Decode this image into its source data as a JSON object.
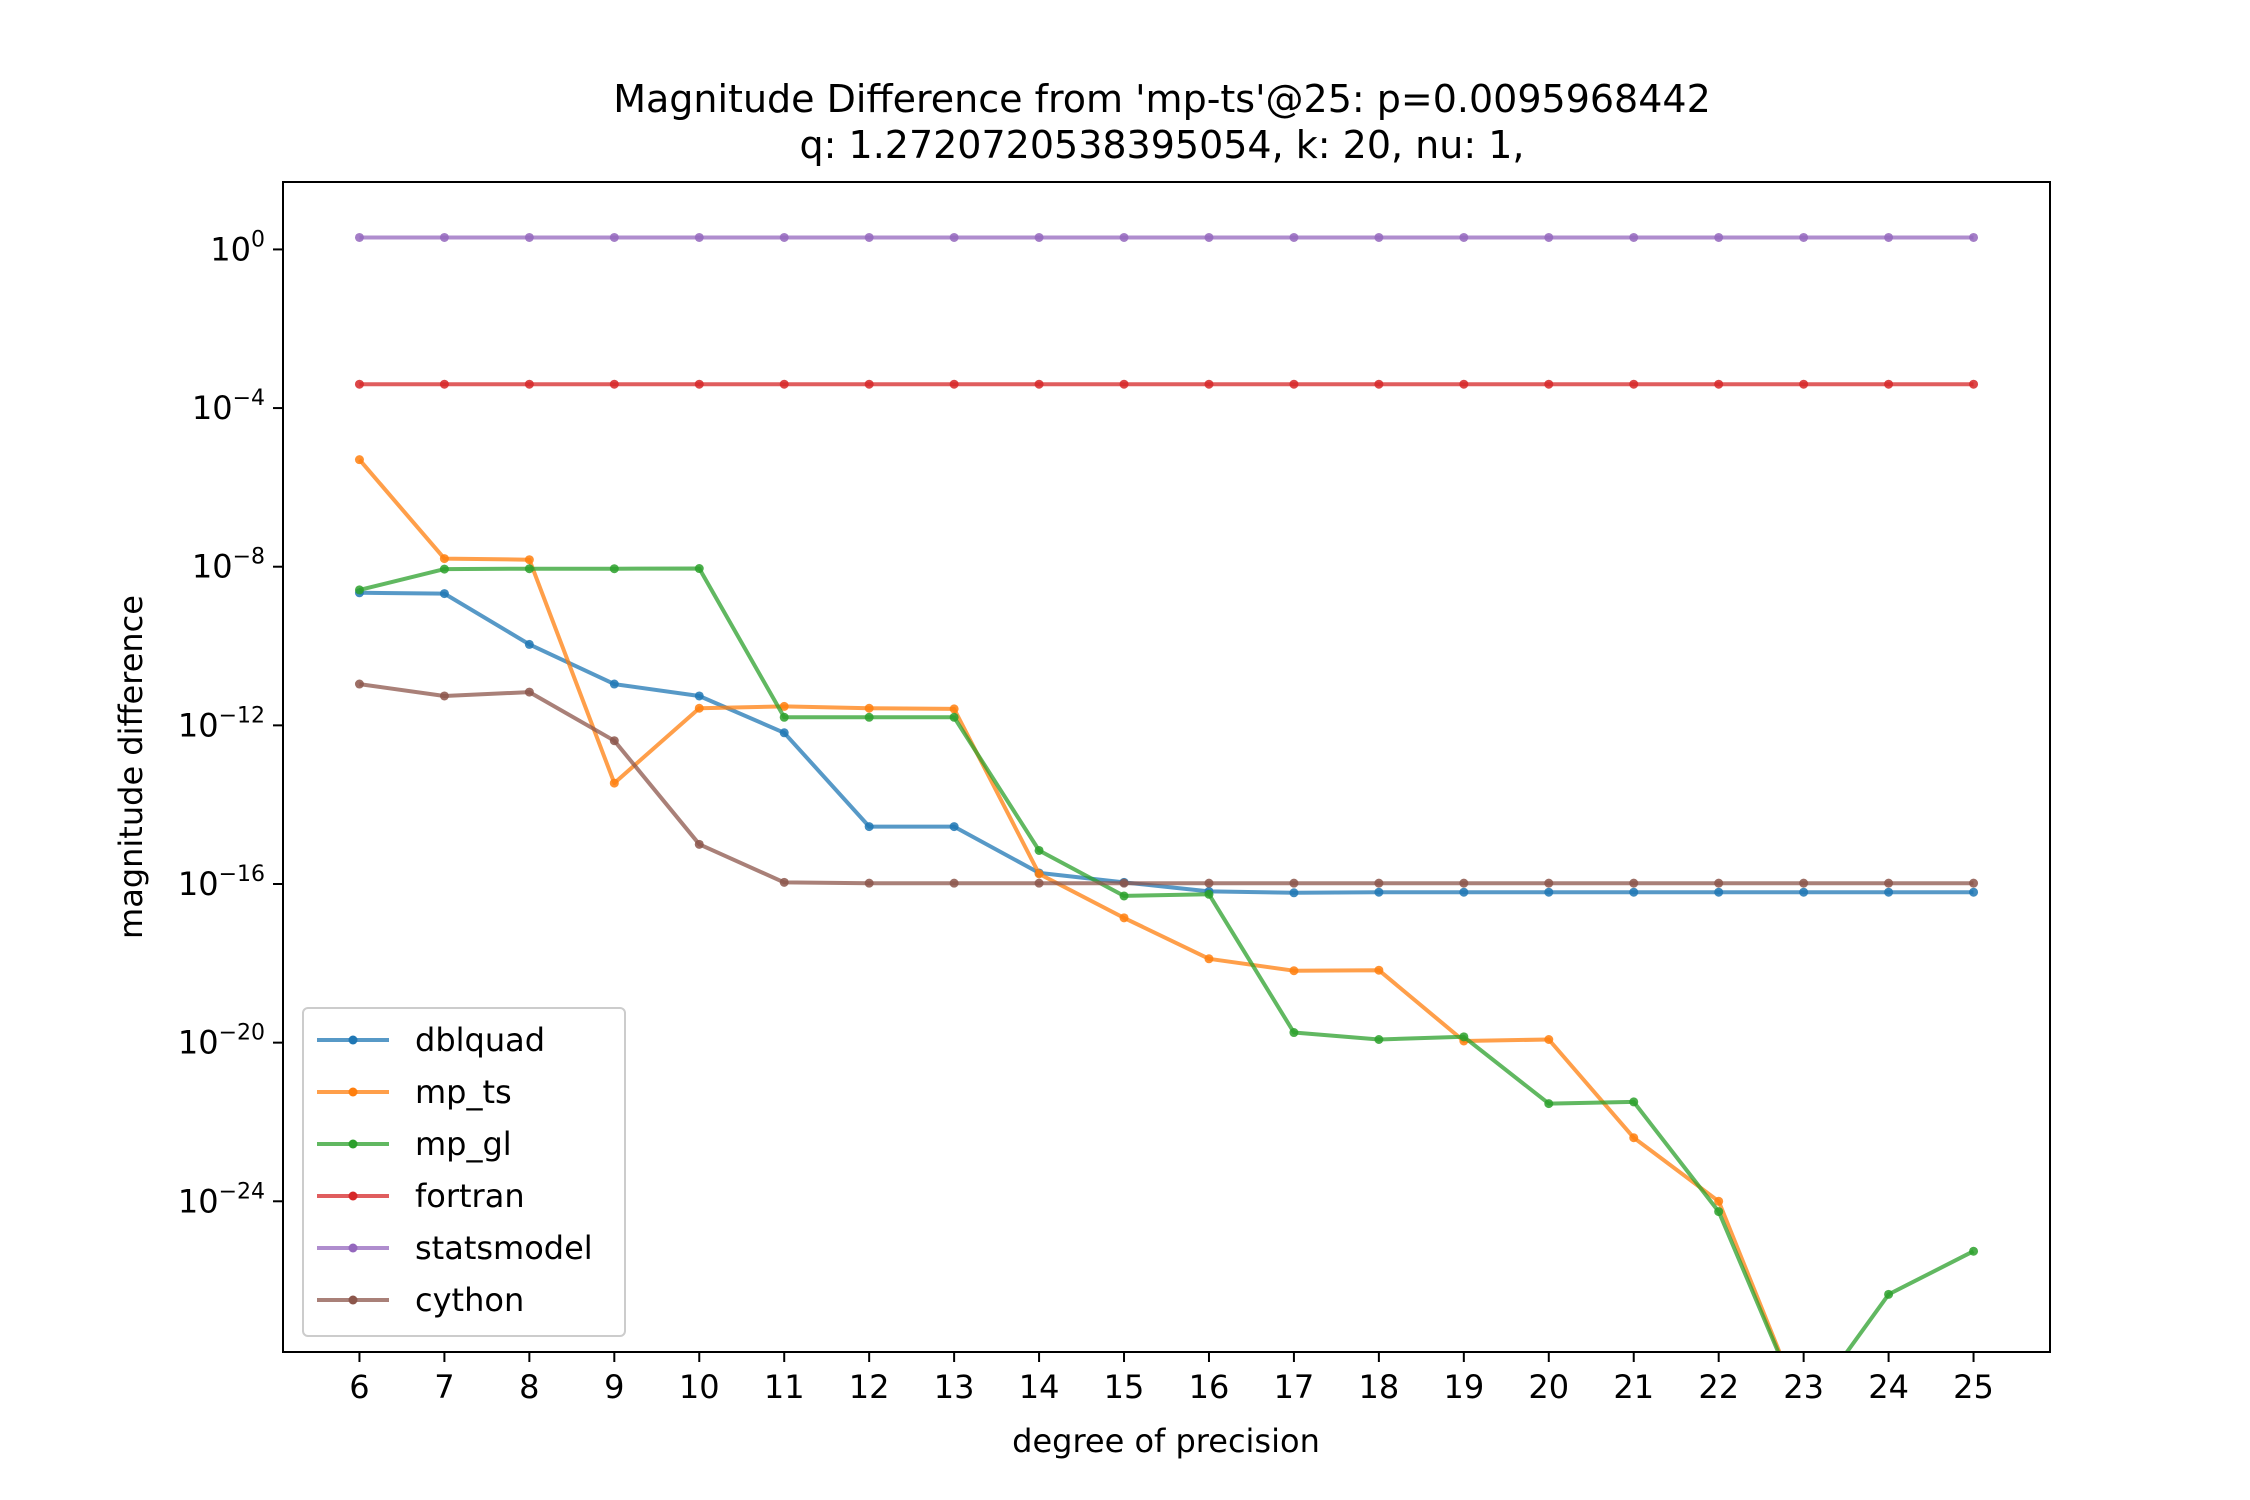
{
  "chart_data": {
    "type": "line",
    "title": "Magnitude Difference from 'mp-ts'@25: p=0.0095968442",
    "subtitle": "q: 1.2720720538395054, k: 20, nu: 1,",
    "xlabel": "degree of precision",
    "ylabel": "magnitude difference",
    "y_scale": "log",
    "xlim": [
      5.1,
      25.9
    ],
    "ylim_log10": [
      -27.8,
      1.7
    ],
    "x": [
      6,
      7,
      8,
      9,
      10,
      11,
      12,
      13,
      14,
      15,
      16,
      17,
      18,
      19,
      20,
      21,
      22,
      23,
      24,
      25
    ],
    "x_tick_labels": [
      "6",
      "7",
      "8",
      "9",
      "10",
      "11",
      "12",
      "13",
      "14",
      "15",
      "16",
      "17",
      "18",
      "19",
      "20",
      "21",
      "22",
      "23",
      "24",
      "25"
    ],
    "y_ticks_log10": [
      0,
      -4,
      -8,
      -12,
      -16,
      -20,
      -24
    ],
    "grid": false,
    "legend_position": "lower-left",
    "series": [
      {
        "name": "dblquad",
        "color": "#1f77b4",
        "points": [
          [
            6,
            2.2e-09
          ],
          [
            7,
            2.1e-09
          ],
          [
            8,
            1.1e-10
          ],
          [
            9,
            1.1e-11
          ],
          [
            10,
            5.5e-12
          ],
          [
            11,
            6.5e-13
          ],
          [
            12,
            2.8e-15
          ],
          [
            13,
            2.8e-15
          ],
          [
            14,
            1.9e-16
          ],
          [
            15,
            1.1e-16
          ],
          [
            16,
            6.5e-17
          ],
          [
            17,
            6e-17
          ],
          [
            18,
            6.2e-17
          ],
          [
            19,
            6.2e-17
          ],
          [
            20,
            6.2e-17
          ],
          [
            21,
            6.2e-17
          ],
          [
            22,
            6.2e-17
          ],
          [
            23,
            6.2e-17
          ],
          [
            24,
            6.2e-17
          ],
          [
            25,
            6.2e-17
          ]
        ]
      },
      {
        "name": "mp_ts",
        "color": "#ff7f0e",
        "points": [
          [
            6,
            5e-06
          ],
          [
            7,
            1.6e-08
          ],
          [
            8,
            1.5e-08
          ],
          [
            9,
            3.5e-14
          ],
          [
            10,
            2.7e-12
          ],
          [
            11,
            3e-12
          ],
          [
            12,
            2.7e-12
          ],
          [
            13,
            2.6e-12
          ],
          [
            14,
            1.8e-16
          ],
          [
            15,
            1.4e-17
          ],
          [
            16,
            1.3e-18
          ],
          [
            17,
            6.5e-19
          ],
          [
            18,
            6.7e-19
          ],
          [
            19,
            1.1e-20
          ],
          [
            20,
            1.2e-20
          ],
          [
            21,
            4e-23
          ],
          [
            22,
            1e-24
          ],
          [
            23,
            null
          ],
          [
            24,
            null
          ],
          [
            25,
            null
          ]
        ]
      },
      {
        "name": "mp_gl",
        "color": "#2ca02c",
        "points": [
          [
            6,
            2.6e-09
          ],
          [
            7,
            8.7e-09
          ],
          [
            8,
            8.9e-09
          ],
          [
            9,
            8.9e-09
          ],
          [
            10,
            9e-09
          ],
          [
            11,
            1.6e-12
          ],
          [
            12,
            1.6e-12
          ],
          [
            13,
            1.6e-12
          ],
          [
            14,
            7e-16
          ],
          [
            15,
            5e-17
          ],
          [
            16,
            5.5e-17
          ],
          [
            17,
            1.8e-20
          ],
          [
            18,
            1.2e-20
          ],
          [
            19,
            1.4e-20
          ],
          [
            20,
            2.9e-22
          ],
          [
            21,
            3.2e-22
          ],
          [
            22,
            5.5e-25
          ],
          [
            23,
            null
          ],
          [
            24,
            4.5e-27
          ],
          [
            25,
            5.5e-26
          ]
        ]
      },
      {
        "name": "fortran",
        "color": "#d62728",
        "points": [
          [
            6,
            0.0004
          ],
          [
            7,
            0.0004
          ],
          [
            8,
            0.0004
          ],
          [
            9,
            0.0004
          ],
          [
            10,
            0.0004
          ],
          [
            11,
            0.0004
          ],
          [
            12,
            0.0004
          ],
          [
            13,
            0.0004
          ],
          [
            14,
            0.0004
          ],
          [
            15,
            0.0004
          ],
          [
            16,
            0.0004
          ],
          [
            17,
            0.0004
          ],
          [
            18,
            0.0004
          ],
          [
            19,
            0.0004
          ],
          [
            20,
            0.0004
          ],
          [
            21,
            0.0004
          ],
          [
            22,
            0.0004
          ],
          [
            23,
            0.0004
          ],
          [
            24,
            0.0004
          ],
          [
            25,
            0.0004
          ]
        ]
      },
      {
        "name": "statsmodel",
        "color": "#9467bd",
        "points": [
          [
            6,
            2.0
          ],
          [
            7,
            2.0
          ],
          [
            8,
            2.0
          ],
          [
            9,
            2.0
          ],
          [
            10,
            2.0
          ],
          [
            11,
            2.0
          ],
          [
            12,
            2.0
          ],
          [
            13,
            2.0
          ],
          [
            14,
            2.0
          ],
          [
            15,
            2.0
          ],
          [
            16,
            2.0
          ],
          [
            17,
            2.0
          ],
          [
            18,
            2.0
          ],
          [
            19,
            2.0
          ],
          [
            20,
            2.0
          ],
          [
            21,
            2.0
          ],
          [
            22,
            2.0
          ],
          [
            23,
            2.0
          ],
          [
            24,
            2.0
          ],
          [
            25,
            2.0
          ]
        ]
      },
      {
        "name": "cython",
        "color": "#8c564b",
        "points": [
          [
            6,
            1.1e-11
          ],
          [
            7,
            5.5e-12
          ],
          [
            8,
            6.9e-12
          ],
          [
            9,
            4.1e-13
          ],
          [
            10,
            1e-15
          ],
          [
            11,
            1.1e-16
          ],
          [
            12,
            1.05e-16
          ],
          [
            13,
            1.05e-16
          ],
          [
            14,
            1.05e-16
          ],
          [
            15,
            1.05e-16
          ],
          [
            16,
            1.05e-16
          ],
          [
            17,
            1.05e-16
          ],
          [
            18,
            1.05e-16
          ],
          [
            19,
            1.05e-16
          ],
          [
            20,
            1.05e-16
          ],
          [
            21,
            1.05e-16
          ],
          [
            22,
            1.05e-16
          ],
          [
            23,
            1.05e-16
          ],
          [
            24,
            1.05e-16
          ],
          [
            25,
            1.05e-16
          ]
        ]
      }
    ]
  }
}
